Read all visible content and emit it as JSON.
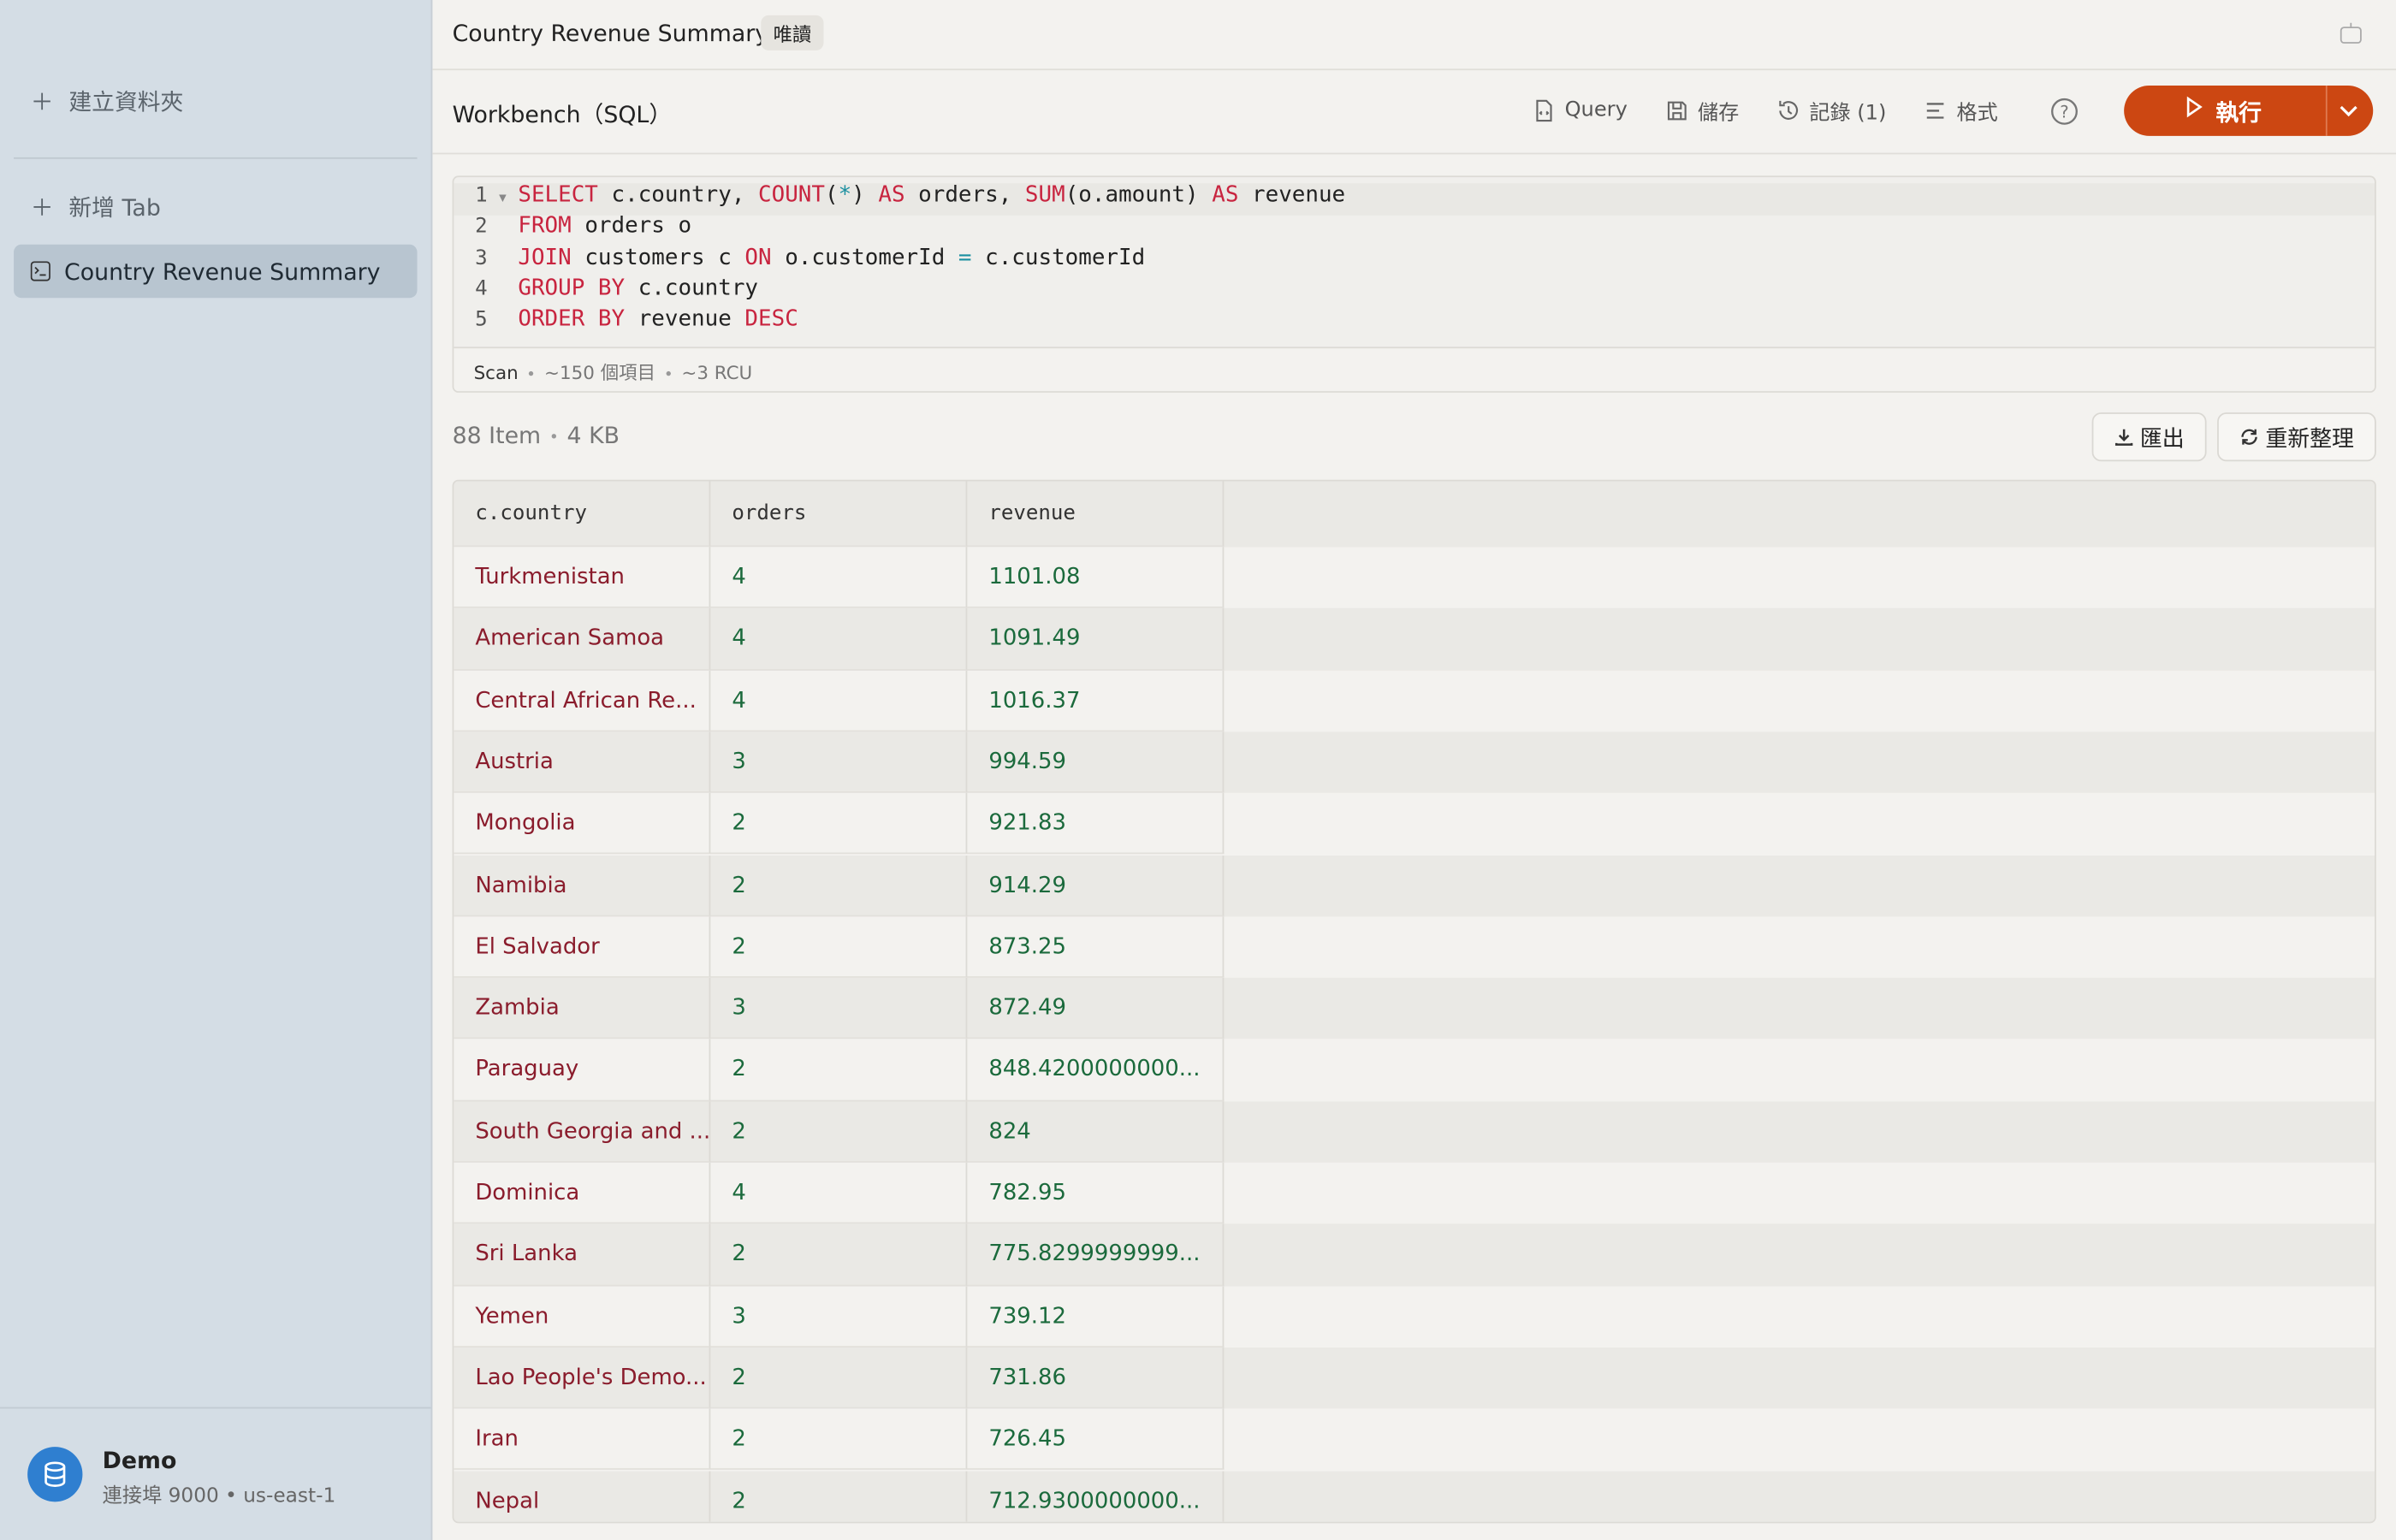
{
  "header": {
    "title": "Country Revenue Summary",
    "badge": "唯讀"
  },
  "sidebar": {
    "new_folder": "建立資料夾",
    "new_tab": "新增 Tab",
    "tabs": [
      "Country Revenue Summary"
    ],
    "connection": {
      "name": "Demo",
      "detail": "連接埠 9000 • us-east-1"
    }
  },
  "toolbar": {
    "title": "Workbench（SQL）",
    "buttons": [
      "Query",
      "儲存",
      "記錄 (1)",
      "格式"
    ],
    "run": "執行"
  },
  "editor": {
    "lines": [
      {
        "number": "1",
        "code": "SELECT c.country, COUNT(*) AS orders, SUM(o.amount) AS revenue"
      },
      {
        "number": "2",
        "code": "FROM orders o"
      },
      {
        "number": "3",
        "code": "JOIN customers c ON o.customerId = c.customerId"
      },
      {
        "number": "4",
        "code": "GROUP BY c.country"
      },
      {
        "number": "5",
        "code": "ORDER BY revenue DESC"
      }
    ],
    "status": [
      "Scan",
      "~150 個項目",
      "~3 RCU"
    ]
  },
  "results": {
    "items": "88 Item",
    "size": "4 KB",
    "actions": [
      "匯出",
      "重新整理"
    ],
    "table": {
      "columns": [
        "c.country",
        "orders",
        "revenue"
      ],
      "rows": [
        [
          "Turkmenistan",
          "4",
          "1101.08"
        ],
        [
          "American Samoa",
          "4",
          "1091.49"
        ],
        [
          "Central African Re...",
          "4",
          "1016.37"
        ],
        [
          "Austria",
          "3",
          "994.59"
        ],
        [
          "Mongolia",
          "2",
          "921.83"
        ],
        [
          "Namibia",
          "2",
          "914.29"
        ],
        [
          "El Salvador",
          "2",
          "873.25"
        ],
        [
          "Zambia",
          "3",
          "872.49"
        ],
        [
          "Paraguay",
          "2",
          "848.4200000000..."
        ],
        [
          "South Georgia and ...",
          "2",
          "824"
        ],
        [
          "Dominica",
          "4",
          "782.95"
        ],
        [
          "Sri Lanka",
          "2",
          "775.8299999999..."
        ],
        [
          "Yemen",
          "3",
          "739.12"
        ],
        [
          "Lao People's Demo...",
          "2",
          "731.86"
        ],
        [
          "Iran",
          "2",
          "726.45"
        ],
        [
          "Nepal",
          "2",
          "712.9300000000..."
        ]
      ]
    }
  }
}
